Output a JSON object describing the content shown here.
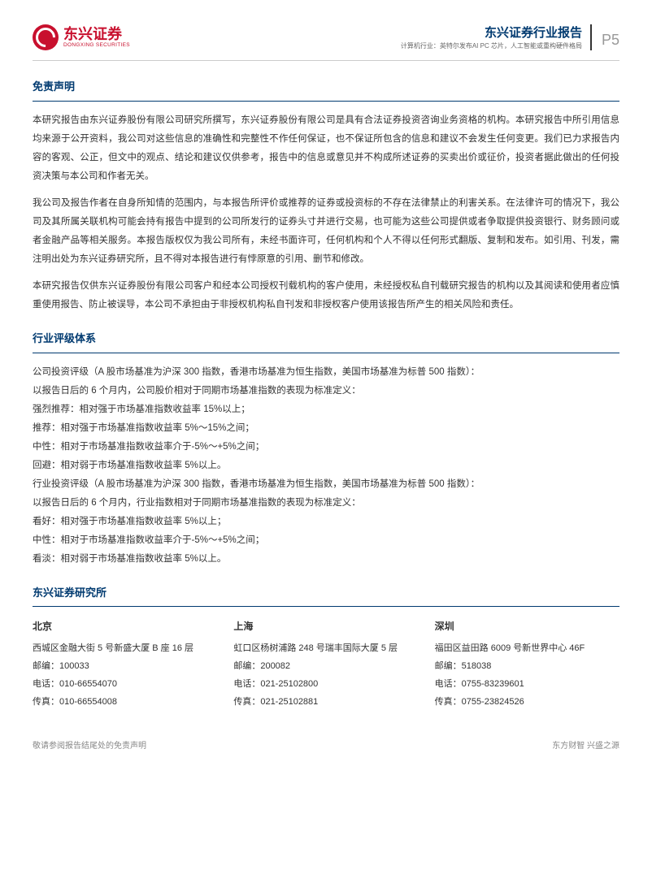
{
  "header": {
    "logo_cn": "东兴证券",
    "logo_en": "DONGXING SECURITIES",
    "report_title": "东兴证券行业报告",
    "report_sub": "计算机行业：英特尔发布AI PC 芯片，人工智能或重构硬件格局",
    "page_num": "P5"
  },
  "sections": {
    "disclaimer_title": "免责声明",
    "disclaimer_p1": "本研究报告由东兴证券股份有限公司研究所撰写，东兴证券股份有限公司是具有合法证券投资咨询业务资格的机构。本研究报告中所引用信息均来源于公开资料，我公司对这些信息的准确性和完整性不作任何保证，也不保证所包含的信息和建议不会发生任何变更。我们已力求报告内容的客观、公正，但文中的观点、结论和建议仅供参考，报告中的信息或意见并不构成所述证券的买卖出价或征价，投资者据此做出的任何投资决策与本公司和作者无关。",
    "disclaimer_p2": "我公司及报告作者在自身所知情的范围内，与本报告所评价或推荐的证券或投资标的不存在法律禁止的利害关系。在法律许可的情况下，我公司及其所属关联机构可能会持有报告中提到的公司所发行的证券头寸并进行交易，也可能为这些公司提供或者争取提供投资银行、财务顾问或者金融产品等相关服务。本报告版权仅为我公司所有，未经书面许可，任何机构和个人不得以任何形式翻版、复制和发布。如引用、刊发，需注明出处为东兴证券研究所，且不得对本报告进行有悖原意的引用、删节和修改。",
    "disclaimer_p3": "本研究报告仅供东兴证券股份有限公司客户和经本公司授权刊载机构的客户使用，未经授权私自刊载研究报告的机构以及其阅读和使用者应慎重使用报告、防止被误导，本公司不承担由于非授权机构私自刊发和非授权客户使用该报告所产生的相关风险和责任。",
    "rating_title": "行业评级体系",
    "rating_l1": "公司投资评级（A 股市场基准为沪深 300 指数，香港市场基准为恒生指数，美国市场基准为标普 500 指数）：",
    "rating_l2": "以报告日后的 6 个月内，公司股价相对于同期市场基准指数的表现为标准定义：",
    "rating_l3": "强烈推荐：相对强于市场基准指数收益率 15%以上；",
    "rating_l4": "推荐：相对强于市场基准指数收益率 5%～15%之间；",
    "rating_l5": "中性：相对于市场基准指数收益率介于-5%～+5%之间；",
    "rating_l6": "回避：相对弱于市场基准指数收益率 5%以上。",
    "rating_l7": "行业投资评级（A 股市场基准为沪深 300 指数，香港市场基准为恒生指数，美国市场基准为标普 500 指数）：",
    "rating_l8": "以报告日后的 6 个月内，行业指数相对于同期市场基准指数的表现为标准定义：",
    "rating_l9": "看好：相对强于市场基准指数收益率 5%以上；",
    "rating_l10": "中性：相对于市场基准指数收益率介于-5%～+5%之间；",
    "rating_l11": "看淡：相对弱于市场基准指数收益率 5%以上。",
    "institute_title": "东兴证券研究所"
  },
  "offices": [
    {
      "city": "北京",
      "address": "西城区金融大街 5 号新盛大厦 B 座 16 层",
      "zip": "邮编：100033",
      "tel": "电话：010-66554070",
      "fax": "传真：010-66554008"
    },
    {
      "city": "上海",
      "address": "虹口区杨树浦路 248 号瑞丰国际大厦 5 层",
      "zip": "邮编：200082",
      "tel": "电话：021-25102800",
      "fax": "传真：021-25102881"
    },
    {
      "city": "深圳",
      "address": "福田区益田路 6009 号新世界中心 46F",
      "zip": "邮编：518038",
      "tel": "电话：0755-83239601",
      "fax": "传真：0755-23824526"
    }
  ],
  "footer": {
    "left": "敬请参阅报告结尾处的免责声明",
    "right": "东方财智 兴盛之源"
  },
  "colors": {
    "brand_red": "#c8102e",
    "brand_blue": "#003a70",
    "text": "#333333",
    "muted": "#888888",
    "border": "#cccccc"
  }
}
